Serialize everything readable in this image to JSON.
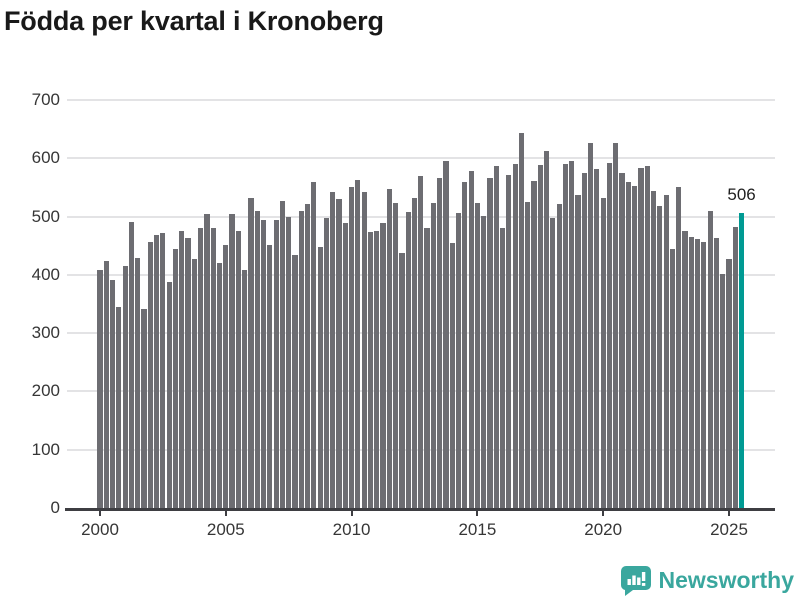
{
  "title": "Födda per kvartal i Kronoberg",
  "chart_data": {
    "type": "bar",
    "title": "Födda per kvartal i Kronoberg",
    "frequency": "quarterly",
    "start_period": "2000-Q1",
    "end_period": "2025-Q3",
    "values": [
      408,
      424,
      391,
      345,
      415,
      491,
      429,
      341,
      457,
      468,
      471,
      387,
      445,
      475,
      463,
      427,
      481,
      505,
      480,
      420,
      451,
      504,
      476,
      409,
      532,
      509,
      494,
      452,
      494,
      527,
      500,
      434,
      510,
      521,
      560,
      448,
      498,
      542,
      530,
      489,
      551,
      563,
      543,
      473,
      475,
      489,
      547,
      523,
      438,
      508,
      532,
      570,
      481,
      524,
      567,
      596,
      455,
      506,
      559,
      578,
      524,
      501,
      566,
      587,
      480,
      571,
      591,
      643,
      525,
      561,
      588,
      612,
      497,
      522,
      591,
      596,
      537,
      574,
      626,
      581,
      532,
      592,
      627,
      574,
      560,
      552,
      584,
      587,
      544,
      518,
      537,
      445,
      550,
      475,
      465,
      461,
      457,
      509,
      463,
      401,
      427,
      482,
      506
    ],
    "highlight": {
      "index": 102,
      "label": "506",
      "color": "#009a93"
    },
    "bar_color": "#6d6d72",
    "ylim": [
      0,
      700
    ],
    "yticks": [
      0,
      100,
      200,
      300,
      400,
      500,
      600,
      700
    ],
    "xticks": [
      2000,
      2005,
      2010,
      2015,
      2020,
      2025
    ],
    "grid": true,
    "legend": "none"
  },
  "footer": {
    "brand": "Newsworthy",
    "brand_color": "#3aa79e",
    "icon": "newsworthy-logo-icon"
  }
}
